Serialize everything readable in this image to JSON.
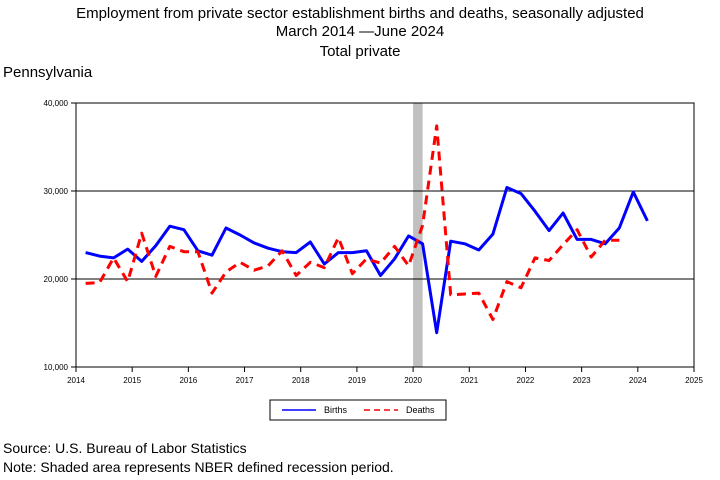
{
  "header": {
    "title_line1": "Employment from private sector establishment births and deaths, seasonally adjusted",
    "title_line2": "March 2014 —June 2024",
    "title_line3": "Total private",
    "region": "Pennsylvania"
  },
  "footer": {
    "source": "Source: U.S. Bureau of Labor Statistics",
    "note": "Note: Shaded area represents NBER defined recession period."
  },
  "chart_data": {
    "type": "line",
    "title": "Employment from private sector establishment births and deaths, seasonally adjusted",
    "subtitle": "March 2014 —June 2024",
    "xlim": [
      2014,
      2025
    ],
    "ylim": [
      10000,
      40000
    ],
    "x_ticks": [
      2014,
      2015,
      2016,
      2017,
      2018,
      2019,
      2020,
      2021,
      2022,
      2023,
      2024,
      2025
    ],
    "x_tick_labels": [
      "2014",
      "2015",
      "2016",
      "2017",
      "2018",
      "2019",
      "2020",
      "2021",
      "2022",
      "2023",
      "2024",
      "2025"
    ],
    "y_ticks": [
      10000,
      20000,
      30000,
      40000
    ],
    "y_tick_labels": [
      "10,000",
      "20,000",
      "30,000",
      "40,000"
    ],
    "gridlines_y": [
      20000,
      30000
    ],
    "legend_position": "bottom-center",
    "recession_band": {
      "x_start": 2020.0,
      "x_end": 2020.17,
      "color": "#c0c0c0"
    },
    "series": [
      {
        "name": "Births",
        "color": "#0000ff",
        "style": "solid",
        "x": [
          2014.17,
          2014.42,
          2014.67,
          2014.92,
          2015.17,
          2015.42,
          2015.67,
          2015.92,
          2016.17,
          2016.42,
          2016.67,
          2016.92,
          2017.17,
          2017.42,
          2017.67,
          2017.92,
          2018.17,
          2018.42,
          2018.67,
          2018.92,
          2019.17,
          2019.42,
          2019.67,
          2019.92,
          2020.17,
          2020.42,
          2020.67,
          2020.92,
          2021.17,
          2021.42,
          2021.67,
          2021.92,
          2022.17,
          2022.42,
          2022.67,
          2022.92,
          2023.17,
          2023.42,
          2023.67,
          2023.92,
          2024.17
        ],
        "y": [
          23000,
          22600,
          22400,
          23400,
          22000,
          23800,
          26000,
          25600,
          23200,
          22700,
          25800,
          25000,
          24100,
          23500,
          23100,
          23000,
          24200,
          21700,
          23000,
          23000,
          23200,
          20400,
          22300,
          24900,
          24000,
          13900,
          24300,
          24000,
          23300,
          25100,
          30400,
          29700,
          27700,
          25500,
          27500,
          24500,
          24500,
          24000,
          25800,
          29900,
          26600
        ]
      },
      {
        "name": "Deaths",
        "color": "#ff0000",
        "style": "dashed",
        "x": [
          2014.17,
          2014.42,
          2014.67,
          2014.92,
          2015.17,
          2015.42,
          2015.67,
          2015.92,
          2016.17,
          2016.42,
          2016.67,
          2016.92,
          2017.17,
          2017.42,
          2017.67,
          2017.92,
          2018.17,
          2018.42,
          2018.67,
          2018.92,
          2019.17,
          2019.42,
          2019.67,
          2019.92,
          2020.17,
          2020.42,
          2020.67,
          2020.92,
          2021.17,
          2021.42,
          2021.67,
          2021.92,
          2022.17,
          2022.42,
          2022.67,
          2022.92,
          2023.17,
          2023.42,
          2023.67,
          2023.92,
          2024.17
        ],
        "y": [
          19500,
          19600,
          22400,
          19700,
          25200,
          20300,
          23700,
          23100,
          23100,
          18400,
          20800,
          21900,
          21000,
          21500,
          23200,
          20400,
          21900,
          21300,
          24700,
          20600,
          22300,
          21800,
          23700,
          21500,
          26100,
          37400,
          18200,
          18300,
          18400,
          15400,
          19700,
          19000,
          22400,
          22100,
          23900,
          25600,
          22500,
          24400,
          24400,
          null,
          null
        ]
      }
    ]
  }
}
